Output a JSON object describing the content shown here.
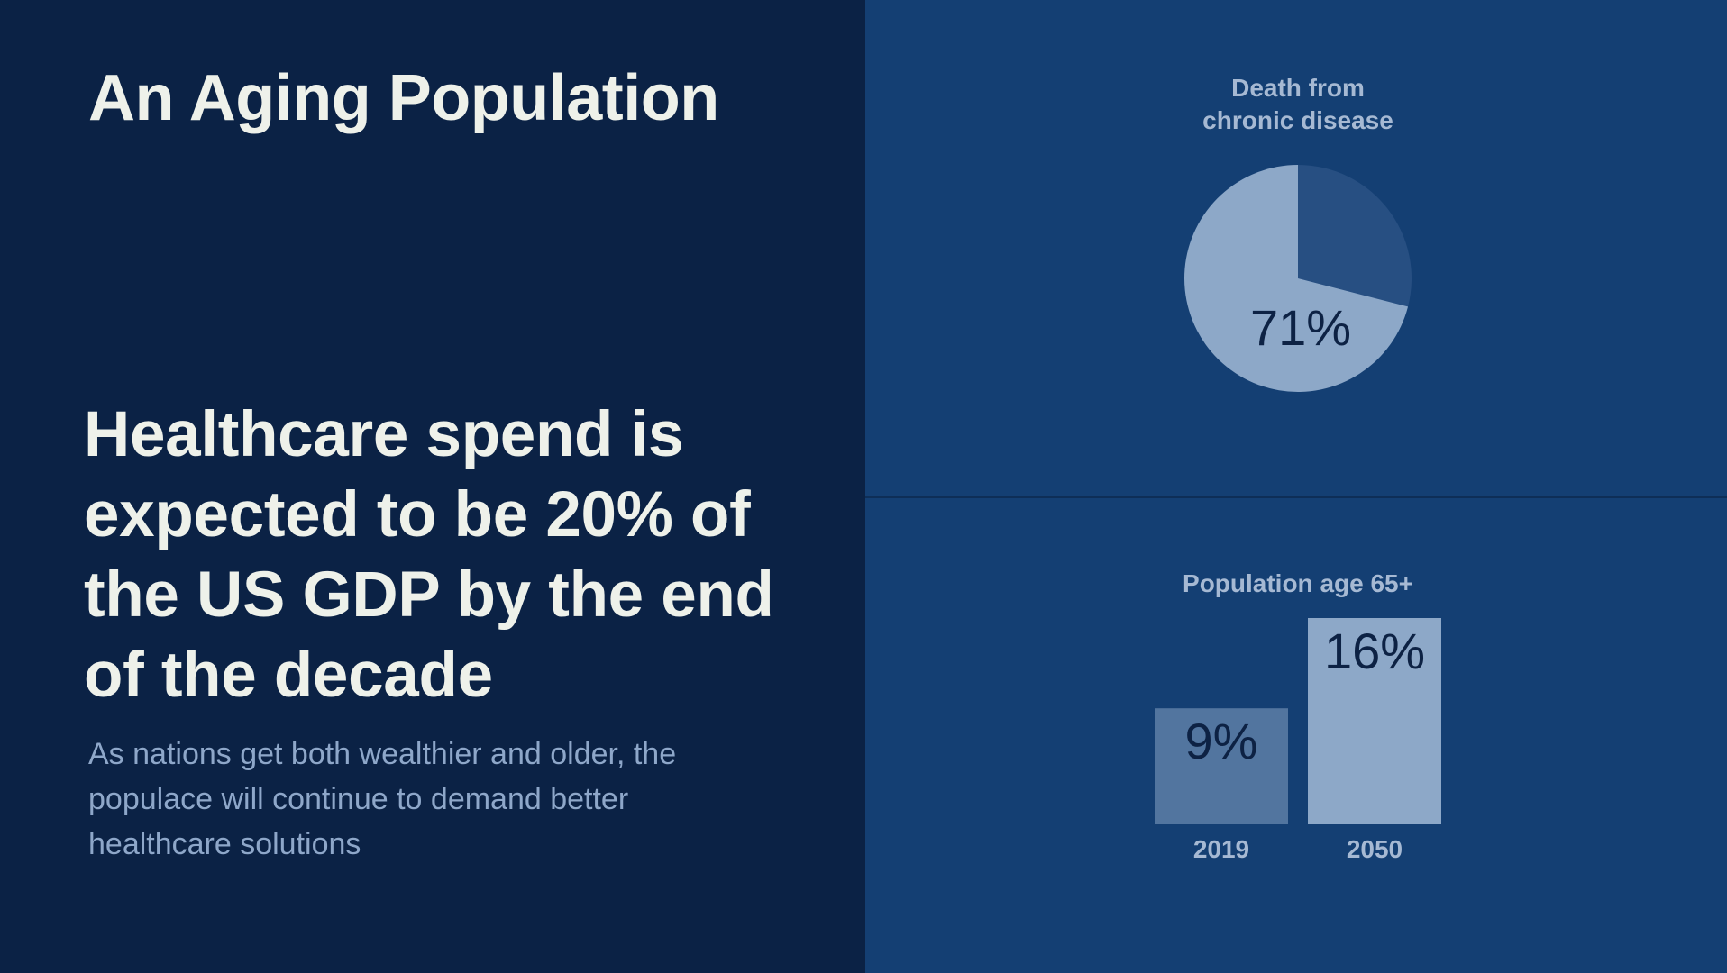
{
  "slide": {
    "title": "An Aging Population",
    "headline": "Healthcare spend is expected to be 20% of the US GDP by the end of the decade",
    "body": "As nations get both wealthier and older, the populace will continue to demand better healthcare solutions"
  },
  "colors": {
    "left_background": "#0b2245",
    "right_background": "#143f73",
    "text_primary": "#eef1ea",
    "text_secondary": "#8ea7c9",
    "pie_highlight": "#8da8c8",
    "pie_rest": "#274f82",
    "bar_2019": "#52759f",
    "bar_2050": "#8da8c8"
  },
  "chart_data": [
    {
      "type": "pie",
      "title": "Death from\nchronic disease",
      "slices": [
        {
          "value": 71,
          "label": "71%",
          "color": "#8da8c8"
        },
        {
          "value": 29,
          "label": "",
          "color": "#274f82"
        }
      ]
    },
    {
      "type": "bar",
      "title": "Population age 65+",
      "categories": [
        "2019",
        "2050"
      ],
      "values": [
        9,
        16
      ],
      "labels": [
        "9%",
        "16%"
      ],
      "colors": [
        "#52759f",
        "#8da8c8"
      ]
    }
  ]
}
